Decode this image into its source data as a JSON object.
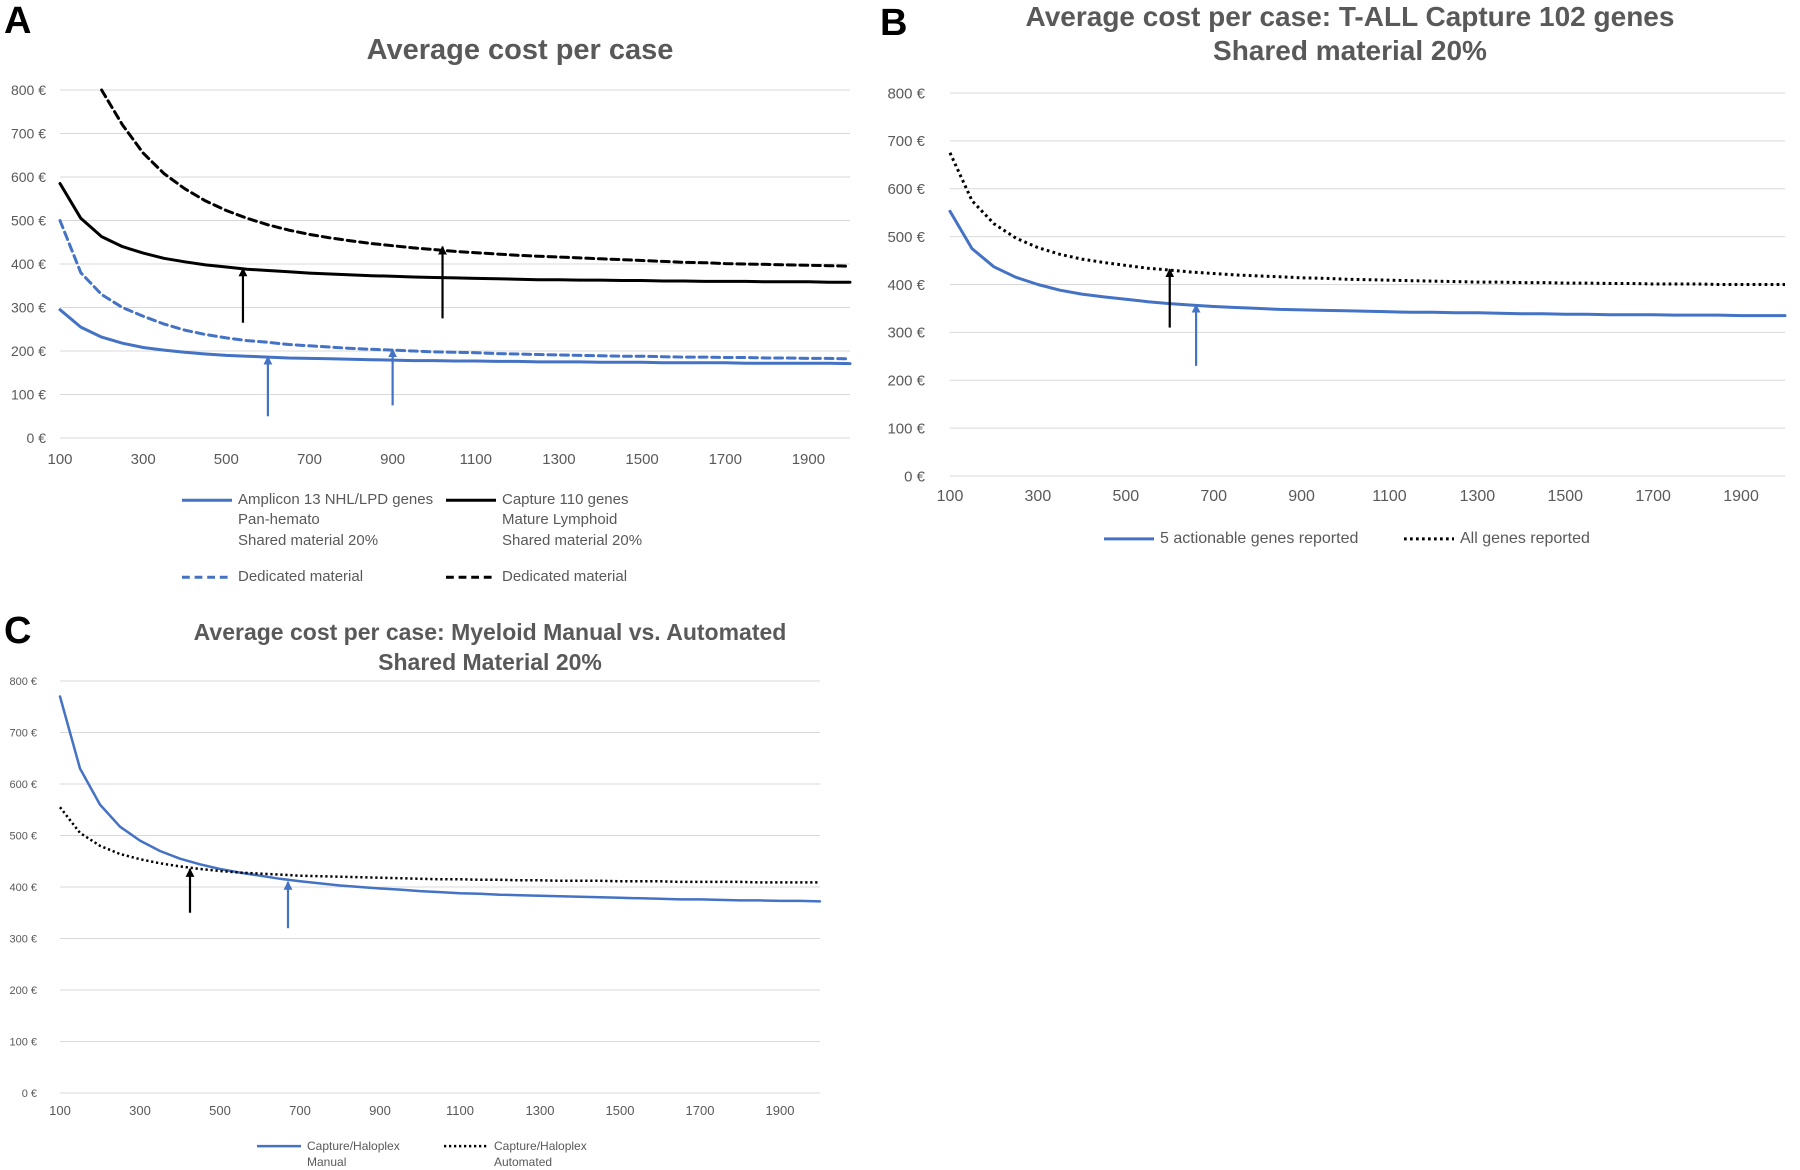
{
  "panels": [
    {
      "letter": "A",
      "title": "Average cost per case",
      "chart_data": {
        "type": "line",
        "title": "Average cost per case",
        "xlabel": "",
        "ylabel": "",
        "x_ticks": [
          "100",
          "300",
          "500",
          "700",
          "900",
          "1100",
          "1300",
          "1500",
          "1700",
          "1900"
        ],
        "y_ticks": [
          "0 €",
          "100 €",
          "200 €",
          "300 €",
          "400 €",
          "500 €",
          "600 €",
          "700 €",
          "800 €"
        ],
        "xlim": [
          100,
          2000
        ],
        "ylim": [
          0,
          800
        ],
        "grid": "horizontal",
        "legend_position": "bottom",
        "x": [
          100,
          150,
          200,
          250,
          300,
          350,
          400,
          450,
          500,
          550,
          600,
          650,
          700,
          750,
          800,
          850,
          900,
          950,
          1000,
          1050,
          1100,
          1150,
          1200,
          1250,
          1300,
          1350,
          1400,
          1450,
          1500,
          1550,
          1600,
          1650,
          1700,
          1750,
          1800,
          1850,
          1900,
          1950,
          2000
        ],
        "series": [
          {
            "name": "Amplicon 13 NHL/LPD genes\nPan-hemato\nShared material 20%",
            "color": "#4472C4",
            "style": "solid",
            "values": [
              295,
              255,
              232,
              218,
              208,
              202,
              197,
              193,
              190,
              188,
              186,
              184,
              183,
              182,
              181,
              180,
              179,
              178,
              178,
              177,
              177,
              176,
              176,
              175,
              175,
              175,
              174,
              174,
              174,
              173,
              173,
              173,
              173,
              172,
              172,
              172,
              172,
              172,
              171
            ]
          },
          {
            "name": "Capture 110 genes\nMature Lymphoid\nShared material 20%",
            "color": "#000000",
            "style": "solid",
            "values": [
              585,
              505,
              463,
              440,
              425,
              413,
              405,
              398,
              393,
              388,
              385,
              382,
              379,
              377,
              375,
              373,
              372,
              370,
              369,
              368,
              367,
              366,
              365,
              364,
              364,
              363,
              363,
              362,
              362,
              361,
              361,
              360,
              360,
              360,
              359,
              359,
              359,
              358,
              358
            ]
          },
          {
            "name": "Dedicated material",
            "color": "#4472C4",
            "style": "dashed",
            "values": [
              500,
              380,
              330,
              300,
              280,
              262,
              248,
              238,
              230,
              224,
              220,
              215,
              212,
              209,
              206,
              204,
              202,
              200,
              198,
              197,
              196,
              194,
              193,
              192,
              191,
              190,
              189,
              188,
              188,
              187,
              186,
              186,
              185,
              185,
              184,
              184,
              183,
              183,
              182
            ]
          },
          {
            "name": "Dedicated material",
            "color": "#000000",
            "style": "dashed",
            "values": [
              null,
              null,
              800,
              720,
              655,
              608,
              573,
              545,
              523,
              505,
              490,
              478,
              468,
              460,
              453,
              447,
              442,
              437,
              433,
              429,
              426,
              423,
              420,
              418,
              416,
              414,
              412,
              410,
              408,
              406,
              404,
              403,
              401,
              400,
              399,
              398,
              397,
              396,
              395
            ]
          }
        ],
        "arrows": [
          {
            "x": 540,
            "y_from": 265,
            "y_to": 390,
            "color": "#000000"
          },
          {
            "x": 1020,
            "y_from": 275,
            "y_to": 440,
            "color": "#000000"
          },
          {
            "x": 600,
            "y_from": 50,
            "y_to": 187,
            "color": "#4472C4"
          },
          {
            "x": 900,
            "y_from": 75,
            "y_to": 204,
            "color": "#4472C4"
          }
        ]
      }
    },
    {
      "letter": "B",
      "title": "Average cost per case: T-ALL Capture 102 genes\nShared material 20%",
      "chart_data": {
        "type": "line",
        "title": "Average cost per case: T-ALL Capture 102 genes\nShared material 20%",
        "xlabel": "",
        "ylabel": "",
        "x_ticks": [
          "100",
          "300",
          "500",
          "700",
          "900",
          "1100",
          "1300",
          "1500",
          "1700",
          "1900"
        ],
        "y_ticks": [
          "0 €",
          "100 €",
          "200 €",
          "300 €",
          "400 €",
          "500 €",
          "600 €",
          "700 €",
          "800 €"
        ],
        "xlim": [
          100,
          2000
        ],
        "ylim": [
          0,
          800
        ],
        "grid": "horizontal",
        "legend_position": "bottom",
        "x": [
          100,
          150,
          200,
          250,
          300,
          350,
          400,
          450,
          500,
          550,
          600,
          650,
          700,
          750,
          800,
          850,
          900,
          950,
          1000,
          1050,
          1100,
          1150,
          1200,
          1250,
          1300,
          1350,
          1400,
          1450,
          1500,
          1550,
          1600,
          1650,
          1700,
          1750,
          1800,
          1850,
          1900,
          1950,
          2000
        ],
        "series": [
          {
            "name": "5 actionable genes reported",
            "color": "#4472C4",
            "style": "solid",
            "values": [
              553,
              475,
              437,
              415,
              400,
              388,
              380,
              374,
              369,
              364,
              360,
              357,
              354,
              352,
              350,
              348,
              347,
              346,
              345,
              344,
              343,
              342,
              342,
              341,
              341,
              340,
              339,
              339,
              338,
              338,
              337,
              337,
              337,
              336,
              336,
              336,
              335,
              335,
              335
            ]
          },
          {
            "name": "All genes reported",
            "color": "#000000",
            "style": "dotted",
            "values": [
              675,
              575,
              527,
              497,
              477,
              463,
              453,
              446,
              440,
              434,
              430,
              426,
              423,
              420,
              418,
              416,
              414,
              413,
              411,
              410,
              409,
              408,
              407,
              406,
              405,
              405,
              404,
              404,
              403,
              403,
              402,
              402,
              401,
              401,
              401,
              400,
              400,
              400,
              400
            ]
          }
        ],
        "arrows": [
          {
            "x": 600,
            "y_from": 310,
            "y_to": 432,
            "color": "#000000"
          },
          {
            "x": 660,
            "y_from": 230,
            "y_to": 358,
            "color": "#4472C4"
          }
        ]
      }
    },
    {
      "letter": "C",
      "title": "Average cost per case: Myeloid Manual vs. Automated\nShared Material 20%",
      "chart_data": {
        "type": "line",
        "title": "Average cost per case: Myeloid Manual vs. Automated\nShared Material 20%",
        "xlabel": "",
        "ylabel": "",
        "x_ticks": [
          "100",
          "300",
          "500",
          "700",
          "900",
          "1100",
          "1300",
          "1500",
          "1700",
          "1900"
        ],
        "y_ticks": [
          "0 €",
          "100 €",
          "200 €",
          "300 €",
          "400 €",
          "500 €",
          "600 €",
          "700 €",
          "800 €"
        ],
        "xlim": [
          100,
          2000
        ],
        "ylim": [
          0,
          800
        ],
        "grid": "horizontal",
        "legend_position": "bottom",
        "x": [
          100,
          150,
          200,
          250,
          300,
          350,
          400,
          450,
          500,
          550,
          600,
          650,
          700,
          750,
          800,
          850,
          900,
          950,
          1000,
          1050,
          1100,
          1150,
          1200,
          1250,
          1300,
          1350,
          1400,
          1450,
          1500,
          1550,
          1600,
          1650,
          1700,
          1750,
          1800,
          1850,
          1900,
          1950,
          2000
        ],
        "series": [
          {
            "name": "Capture/Haloplex\nManual",
            "color": "#4472C4",
            "style": "solid",
            "values": [
              770,
              630,
              560,
              517,
              490,
              470,
              455,
              444,
              435,
              428,
              422,
              416,
              411,
              407,
              403,
              400,
              397,
              395,
              392,
              390,
              388,
              387,
              385,
              384,
              383,
              382,
              381,
              380,
              379,
              378,
              377,
              376,
              376,
              375,
              374,
              374,
              373,
              373,
              372
            ]
          },
          {
            "name": "Capture/Haloplex\nAutomated",
            "color": "#000000",
            "style": "dotted",
            "values": [
              555,
              505,
              480,
              464,
              454,
              446,
              440,
              435,
              431,
              428,
              426,
              424,
              422,
              421,
              420,
              419,
              418,
              417,
              416,
              415,
              415,
              414,
              414,
              413,
              413,
              412,
              412,
              412,
              411,
              411,
              411,
              410,
              410,
              410,
              410,
              409,
              409,
              409,
              409
            ]
          }
        ],
        "arrows": [
          {
            "x": 425,
            "y_from": 350,
            "y_to": 435,
            "color": "#000000"
          },
          {
            "x": 670,
            "y_from": 320,
            "y_to": 410,
            "color": "#4472C4"
          }
        ]
      }
    }
  ]
}
